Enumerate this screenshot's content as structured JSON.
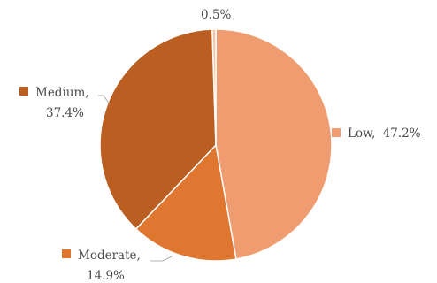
{
  "chart_data": {
    "type": "pie",
    "title": "",
    "slices": [
      {
        "name": "Low",
        "value": 47.2,
        "color": "#F09C71",
        "label_name": "Low,",
        "label_pct": "47.2%"
      },
      {
        "name": "Moderate",
        "value": 14.9,
        "color": "#E07731",
        "label_name": "Moderate,",
        "label_pct": "14.9%"
      },
      {
        "name": "Medium",
        "value": 37.4,
        "color": "#BA5E22",
        "label_name": "Medium,",
        "label_pct": "37.4%"
      },
      {
        "name": "",
        "value": 0.5,
        "color": "#F7C3A4",
        "label_name": "",
        "label_pct": "0.5%"
      }
    ],
    "start_angle_deg": 0,
    "direction": "clockwise",
    "legend": "none",
    "data_labels": "outside with leader lines"
  }
}
